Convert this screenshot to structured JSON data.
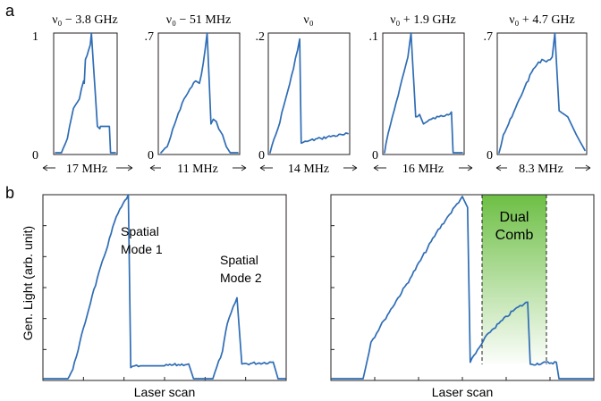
{
  "panel_labels": {
    "a": "a",
    "b": "b"
  },
  "colors": {
    "trace": "#2f6db5",
    "axis": "#231f20",
    "dual_comb_fill": "#6dbf45"
  },
  "chart_data": [
    {
      "type": "line",
      "panel": "a",
      "title": "ν₀ − 3.8 GHz",
      "ytop": "1",
      "ybottom": "0",
      "span_label": "17 MHz",
      "x": [
        0,
        0.1,
        0.2,
        0.3,
        0.4,
        0.47,
        0.48,
        0.5,
        0.58,
        0.6,
        0.7,
        0.74,
        0.75,
        0.9,
        0.92,
        1.0
      ],
      "y": [
        0,
        0,
        0.12,
        0.37,
        0.45,
        0.6,
        0.58,
        0.78,
        0.9,
        1.0,
        0.22,
        0.2,
        0.22,
        0.22,
        0,
        0
      ]
    },
    {
      "type": "line",
      "panel": "a",
      "title": "ν₀ − 51 MHz",
      "ytop": ".7",
      "ybottom": "0",
      "span_label": "11 MHz",
      "x": [
        0,
        0.08,
        0.2,
        0.3,
        0.4,
        0.45,
        0.5,
        0.55,
        0.6,
        0.65,
        0.68,
        0.72,
        0.75,
        0.8,
        0.85,
        0.9,
        1.0
      ],
      "y": [
        0,
        0.05,
        0.28,
        0.45,
        0.55,
        0.6,
        0.58,
        0.75,
        1.0,
        0.24,
        0.28,
        0.26,
        0.2,
        0.15,
        0.05,
        0,
        0
      ]
    },
    {
      "type": "line",
      "panel": "a",
      "title": "ν₀",
      "ytop": ".2",
      "ybottom": "0",
      "span_label": "14 MHz",
      "x": [
        0,
        0.02,
        0.1,
        0.2,
        0.3,
        0.38,
        0.4,
        0.5,
        0.65,
        0.8,
        0.95,
        1.0
      ],
      "y": [
        0,
        0.05,
        0.2,
        0.45,
        0.7,
        0.95,
        0.08,
        0.1,
        0.12,
        0.14,
        0.15,
        0.16
      ]
    },
    {
      "type": "line",
      "panel": "a",
      "title": "ν₀ + 1.9 GHz",
      "ytop": ".1",
      "ybottom": "0",
      "span_label": "16 MHz",
      "x": [
        0,
        0.02,
        0.1,
        0.2,
        0.3,
        0.34,
        0.4,
        0.45,
        0.5,
        0.6,
        0.7,
        0.8,
        0.86,
        0.88,
        1.0
      ],
      "y": [
        0,
        0.08,
        0.3,
        0.55,
        0.8,
        1.0,
        0.3,
        0.32,
        0.24,
        0.28,
        0.3,
        0.32,
        0.34,
        0,
        0
      ]
    },
    {
      "type": "line",
      "panel": "a",
      "title": "ν₀ + 4.7 GHz",
      "ytop": ".7",
      "ybottom": "0",
      "span_label": "8.3 MHz",
      "x": [
        0,
        0.05,
        0.15,
        0.3,
        0.4,
        0.5,
        0.55,
        0.62,
        0.65,
        0.7,
        0.8,
        0.9,
        1.0
      ],
      "y": [
        0,
        0.15,
        0.3,
        0.55,
        0.7,
        0.78,
        0.76,
        0.8,
        1.0,
        0.35,
        0.3,
        0.15,
        0.02
      ]
    },
    {
      "type": "line",
      "panel": "b",
      "ylabel": "Gen. Light (arb. unit)",
      "xlabel": "Laser scan",
      "annotations": [
        {
          "line1": "Spatial",
          "line2": "Mode 1"
        },
        {
          "line1": "Spatial",
          "line2": "Mode 2"
        }
      ],
      "x": [
        0,
        0.1,
        0.12,
        0.2,
        0.3,
        0.35,
        0.36,
        0.4,
        0.5,
        0.6,
        0.62,
        0.7,
        0.74,
        0.76,
        0.8,
        0.82,
        0.95,
        0.97,
        1.0
      ],
      "y": [
        0,
        0,
        0.05,
        0.45,
        0.88,
        1.0,
        0.06,
        0.07,
        0.07,
        0.08,
        0,
        0,
        0.15,
        0.3,
        0.44,
        0.08,
        0.09,
        0,
        0
      ]
    },
    {
      "type": "line",
      "panel": "b",
      "xlabel": "Laser scan",
      "annotations": [
        {
          "line1": "Dual",
          "line2": "Comb"
        }
      ],
      "x": [
        0,
        0.12,
        0.15,
        0.2,
        0.3,
        0.4,
        0.45,
        0.5,
        0.52,
        0.53,
        0.6,
        0.7,
        0.75,
        0.76,
        0.86,
        0.87,
        1.0
      ],
      "y": [
        0,
        0,
        0.2,
        0.32,
        0.55,
        0.8,
        0.9,
        1.0,
        0.94,
        0.09,
        0.25,
        0.38,
        0.42,
        0.08,
        0.09,
        0,
        0
      ]
    }
  ]
}
